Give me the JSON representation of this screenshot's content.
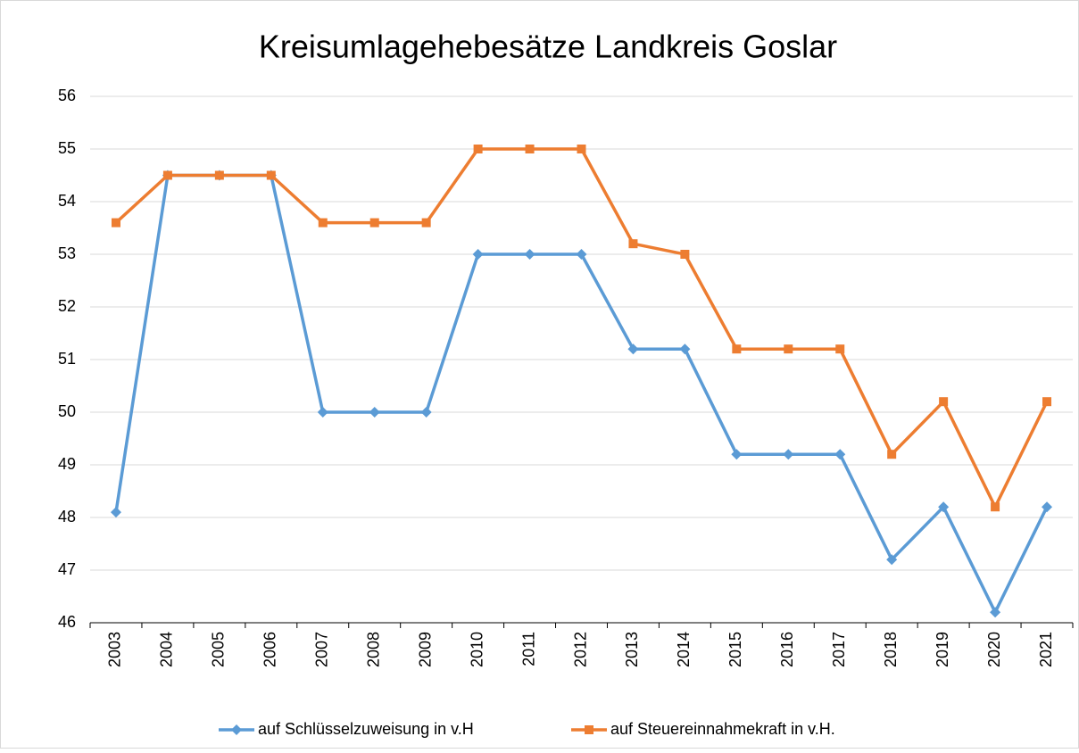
{
  "chart_data": {
    "type": "line",
    "title": "Kreisumlagehebesätze Landkreis Goslar",
    "categories": [
      "2003",
      "2004",
      "2005",
      "2006",
      "2007",
      "2008",
      "2009",
      "2010",
      "2011",
      "2012",
      "2013",
      "2014",
      "2015",
      "2016",
      "2017",
      "2018",
      "2019",
      "2020",
      "2021"
    ],
    "series": [
      {
        "name": "auf Schlüsselzuweisung in v.H",
        "color": "#5b9bd5",
        "marker": "diamond",
        "values": [
          48.1,
          54.5,
          54.5,
          54.5,
          50,
          50,
          50,
          53,
          53,
          53,
          51.2,
          51.2,
          49.2,
          49.2,
          49.2,
          47.2,
          48.2,
          46.2,
          48.2
        ]
      },
      {
        "name": "auf Steuereinnahmekraft in v.H.",
        "color": "#ed7d31",
        "marker": "square",
        "values": [
          53.6,
          54.5,
          54.5,
          54.5,
          53.6,
          53.6,
          53.6,
          55,
          55,
          55,
          53.2,
          53,
          51.2,
          51.2,
          51.2,
          49.2,
          50.2,
          48.2,
          50.2
        ]
      }
    ],
    "ylim": [
      46,
      56
    ],
    "yticks": [
      46,
      47,
      48,
      49,
      50,
      51,
      52,
      53,
      54,
      55,
      56
    ],
    "grid": true,
    "legend": "bottom"
  }
}
